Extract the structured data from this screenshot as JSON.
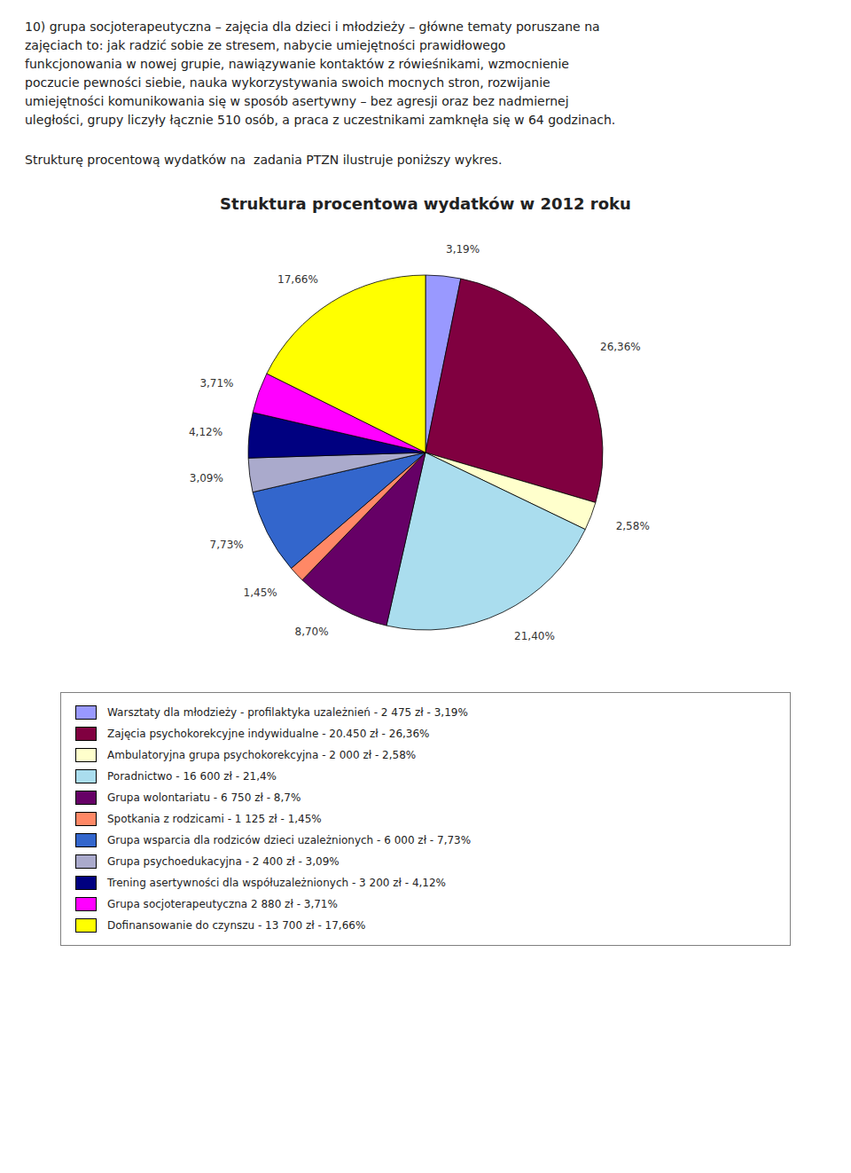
{
  "chart_data": {
    "type": "pie",
    "title": "Struktura procentowa wydatków w 2012 roku",
    "subtitle": "Strukturę procentową wydatków na  zadania PTZN ilustruje poniższy wykres.",
    "annotations": [
      "10) grupa socjoterapeutyczna – zajęcia dla dzieci i młodzieży – główne tematy poruszane na",
      "zajęciach to: jak radzić sobie ze stresem, nabycie umiejętności prawidłowego",
      "funkcjonowania w nowej grupie, nawiązywanie kontaktów z rówieśnikami, wzmocnienie",
      "poczucie pewności siebie, nauka wykorzystywania swoich mocnych stron, rozwijanie",
      "umiejętności komunikowania się w sposób asertywny – bez agresji oraz bez nadmiernej",
      "uległości, grupy liczyły łącznie 510 osób, a praca z uczestnikami zamknęła się w 64 godzinach."
    ],
    "categories": [
      "Warsztaty dla młodzieży - profilaktyka uzależnień - 2 475 zł - 3,19%",
      "Zajęcia psychokorekcyjne indywidualne - 20.450 zł - 26,36%",
      "Ambulatoryjna grupa psychokorekcyjna - 2 000 zł - 2,58%",
      "Poradnictwo - 16 600 zł - 21,4%",
      "Grupa wolontariatu - 6 750 zł - 8,7%",
      "Spotkania z rodzicami - 1 125 zł - 1,45%",
      "Grupa wsparcia dla rodziców dzieci uzależnionych - 6 000 zł - 7,73%",
      "Grupa psychoedukacyjna - 2 400 zł - 3,09%",
      "Trening asertywności dla współuzależnionych - 3 200 zł - 4,12%",
      "Grupa socjoterapeutyczna 2 880 zł - 3,71%",
      "Dofinansowanie do czynszu - 13 700 zł - 17,66%"
    ],
    "values": [
      3.19,
      26.36,
      2.58,
      21.4,
      8.7,
      1.45,
      7.73,
      3.09,
      4.12,
      3.71,
      17.66
    ],
    "value_labels": [
      "3,19%",
      "26,36%",
      "2,58%",
      "21,40%",
      "8,70%",
      "1,45%",
      "7,73%",
      "3,09%",
      "4,12%",
      "3,71%",
      "17,66%"
    ],
    "colors": [
      "#9999FF",
      "#800040",
      "#FFFFCC",
      "#AADDEE",
      "#660066",
      "#FF8866",
      "#3366CC",
      "#AAAACC",
      "#000080",
      "#FF00FF",
      "#FFFF00"
    ],
    "data_labels": true,
    "legend": "bottom"
  }
}
